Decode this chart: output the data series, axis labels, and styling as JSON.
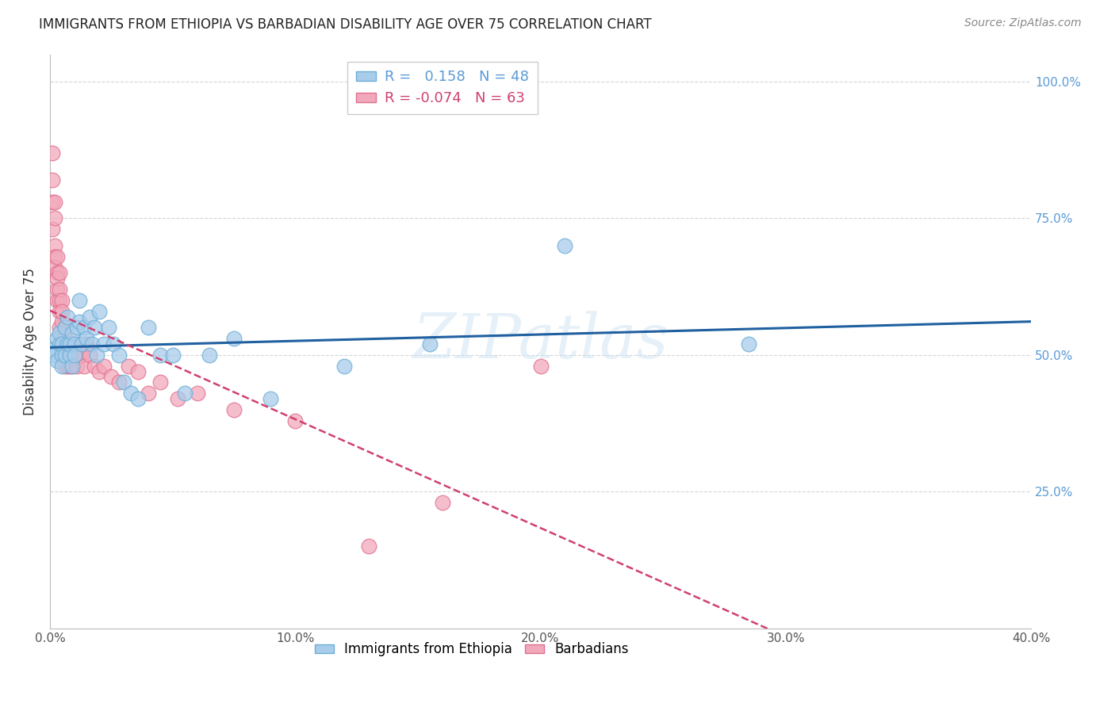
{
  "title": "IMMIGRANTS FROM ETHIOPIA VS BARBADIAN DISABILITY AGE OVER 75 CORRELATION CHART",
  "source": "Source: ZipAtlas.com",
  "ylabel": "Disability Age Over 75",
  "xlim": [
    0.0,
    0.4
  ],
  "ylim": [
    0.0,
    1.05
  ],
  "blue_R": 0.158,
  "blue_N": 48,
  "pink_R": -0.074,
  "pink_N": 63,
  "watermark": "ZIPatlas",
  "blue_color": "#A8CCEA",
  "pink_color": "#F2A8BB",
  "blue_edge": "#6BAED6",
  "pink_edge": "#E07090",
  "trend_blue": "#2060A0",
  "trend_pink": "#D04070",
  "blue_scatter_x": [
    0.001,
    0.002,
    0.003,
    0.003,
    0.004,
    0.004,
    0.005,
    0.005,
    0.005,
    0.006,
    0.006,
    0.007,
    0.007,
    0.008,
    0.008,
    0.009,
    0.009,
    0.01,
    0.01,
    0.011,
    0.012,
    0.012,
    0.013,
    0.014,
    0.015,
    0.016,
    0.017,
    0.018,
    0.019,
    0.02,
    0.022,
    0.024,
    0.026,
    0.028,
    0.03,
    0.033,
    0.036,
    0.04,
    0.045,
    0.05,
    0.055,
    0.065,
    0.075,
    0.09,
    0.12,
    0.155,
    0.21,
    0.285
  ],
  "blue_scatter_y": [
    0.51,
    0.5,
    0.53,
    0.49,
    0.52,
    0.54,
    0.5,
    0.52,
    0.48,
    0.55,
    0.5,
    0.52,
    0.57,
    0.5,
    0.52,
    0.48,
    0.54,
    0.52,
    0.5,
    0.55,
    0.6,
    0.56,
    0.52,
    0.55,
    0.53,
    0.57,
    0.52,
    0.55,
    0.5,
    0.58,
    0.52,
    0.55,
    0.52,
    0.5,
    0.45,
    0.43,
    0.42,
    0.55,
    0.5,
    0.5,
    0.43,
    0.5,
    0.53,
    0.42,
    0.48,
    0.52,
    0.7,
    0.52
  ],
  "pink_scatter_x": [
    0.001,
    0.001,
    0.001,
    0.001,
    0.002,
    0.002,
    0.002,
    0.002,
    0.002,
    0.003,
    0.003,
    0.003,
    0.003,
    0.003,
    0.004,
    0.004,
    0.004,
    0.004,
    0.004,
    0.005,
    0.005,
    0.005,
    0.005,
    0.005,
    0.005,
    0.006,
    0.006,
    0.006,
    0.006,
    0.006,
    0.007,
    0.007,
    0.007,
    0.007,
    0.008,
    0.008,
    0.008,
    0.009,
    0.009,
    0.01,
    0.01,
    0.011,
    0.012,
    0.013,
    0.014,
    0.015,
    0.016,
    0.018,
    0.02,
    0.022,
    0.025,
    0.028,
    0.032,
    0.036,
    0.04,
    0.045,
    0.052,
    0.06,
    0.075,
    0.1,
    0.13,
    0.16,
    0.2
  ],
  "pink_scatter_y": [
    0.87,
    0.82,
    0.78,
    0.73,
    0.75,
    0.7,
    0.68,
    0.66,
    0.78,
    0.65,
    0.68,
    0.62,
    0.6,
    0.64,
    0.6,
    0.58,
    0.62,
    0.65,
    0.55,
    0.6,
    0.56,
    0.53,
    0.58,
    0.52,
    0.5,
    0.55,
    0.52,
    0.5,
    0.48,
    0.53,
    0.52,
    0.5,
    0.48,
    0.52,
    0.5,
    0.52,
    0.48,
    0.5,
    0.48,
    0.5,
    0.52,
    0.48,
    0.5,
    0.5,
    0.48,
    0.52,
    0.5,
    0.48,
    0.47,
    0.48,
    0.46,
    0.45,
    0.48,
    0.47,
    0.43,
    0.45,
    0.42,
    0.43,
    0.4,
    0.38,
    0.15,
    0.23,
    0.48
  ]
}
